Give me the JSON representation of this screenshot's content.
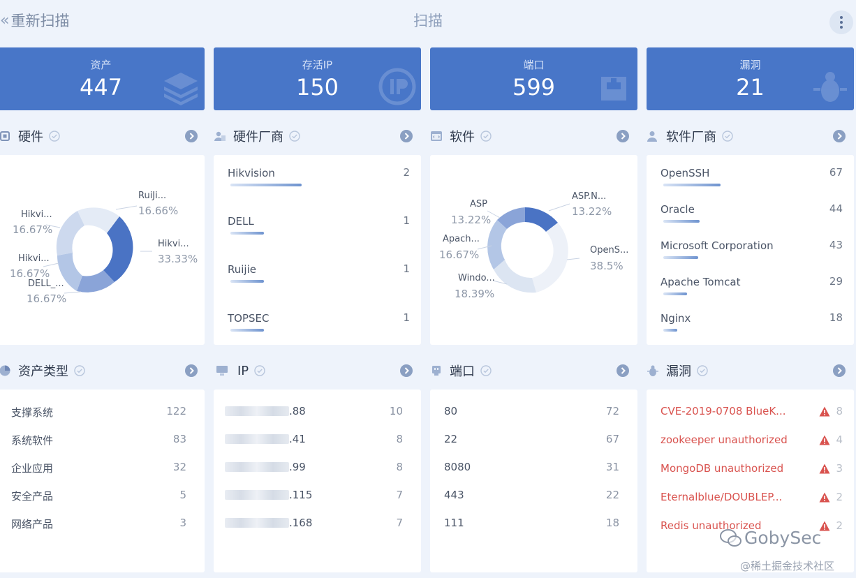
{
  "header": {
    "back_label": "重新扫描",
    "title": "扫描"
  },
  "stats": [
    {
      "label": "资产",
      "value": "447"
    },
    {
      "label": "存活IP",
      "value": "150"
    },
    {
      "label": "端口",
      "value": "599"
    },
    {
      "label": "漏洞",
      "value": "21"
    }
  ],
  "hardware": {
    "title": "硬件",
    "chart_data": {
      "type": "pie",
      "labels": [
        {
          "name": "RuiJi...",
          "pct": "16.66%"
        },
        {
          "name": "Hikvi...",
          "pct": "33.33%"
        },
        {
          "name": "DELL_...",
          "pct": "16.67%"
        },
        {
          "name": "Hikvi...",
          "pct": "16.67%"
        },
        {
          "name": "Hikvi...",
          "pct": "16.67%"
        }
      ]
    }
  },
  "hardware_vendor": {
    "title": "硬件厂商",
    "items": [
      {
        "name": "Hikvision",
        "count": "2",
        "fill": 0.45
      },
      {
        "name": "DELL",
        "count": "1",
        "fill": 0.2
      },
      {
        "name": "Ruijie",
        "count": "1",
        "fill": 0.2
      },
      {
        "name": "TOPSEC",
        "count": "1",
        "fill": 0.2
      }
    ]
  },
  "software": {
    "title": "软件",
    "chart_data": {
      "type": "pie",
      "labels": [
        {
          "name": "ASP",
          "pct": "13.22%"
        },
        {
          "name": "ASP.N...",
          "pct": "13.22%"
        },
        {
          "name": "Apach...",
          "pct": "16.67%"
        },
        {
          "name": "OpenS...",
          "pct": "38.5%"
        },
        {
          "name": "Windo...",
          "pct": "18.39%"
        }
      ]
    }
  },
  "software_vendor": {
    "title": "软件厂商",
    "items": [
      {
        "name": "OpenSSH",
        "count": "67",
        "fill": 0.33
      },
      {
        "name": "Oracle",
        "count": "44",
        "fill": 0.22
      },
      {
        "name": "Microsoft Corporation",
        "count": "43",
        "fill": 0.2
      },
      {
        "name": "Apache Tomcat",
        "count": "29",
        "fill": 0.15
      },
      {
        "name": "Nginx",
        "count": "18",
        "fill": 0.09
      }
    ]
  },
  "asset_type": {
    "title": "资产类型",
    "items": [
      {
        "name": "支撑系统",
        "count": "122"
      },
      {
        "name": "系统软件",
        "count": "83"
      },
      {
        "name": "企业应用",
        "count": "32"
      },
      {
        "name": "安全产品",
        "count": "5"
      },
      {
        "name": "网络产品",
        "count": "3"
      }
    ]
  },
  "ip": {
    "title": "IP",
    "items": [
      {
        "name": ".88",
        "count": "10"
      },
      {
        "name": ".41",
        "count": "8"
      },
      {
        "name": ".99",
        "count": "8"
      },
      {
        "name": ".115",
        "count": "7"
      },
      {
        "name": ".168",
        "count": "7"
      }
    ]
  },
  "ports": {
    "title": "端口",
    "items": [
      {
        "name": "80",
        "count": "72"
      },
      {
        "name": "22",
        "count": "67"
      },
      {
        "name": "8080",
        "count": "31"
      },
      {
        "name": "443",
        "count": "22"
      },
      {
        "name": "111",
        "count": "18"
      }
    ]
  },
  "vulns": {
    "title": "漏洞",
    "items": [
      {
        "name": "CVE-2019-0708 BlueK...",
        "count": "8"
      },
      {
        "name": "zookeeper unauthorized",
        "count": "4"
      },
      {
        "name": "MongoDB unauthorized",
        "count": "3"
      },
      {
        "name": "Eternalblue/DOUBLEP...",
        "count": "2"
      },
      {
        "name": "Redis unauthorized",
        "count": "2"
      }
    ]
  },
  "watermark": {
    "brand": "GobySec",
    "site": "@稀土掘金技术社区"
  },
  "colors": {
    "accent": "#4876c8",
    "danger": "#d9534f",
    "background": "#eef3fb"
  }
}
